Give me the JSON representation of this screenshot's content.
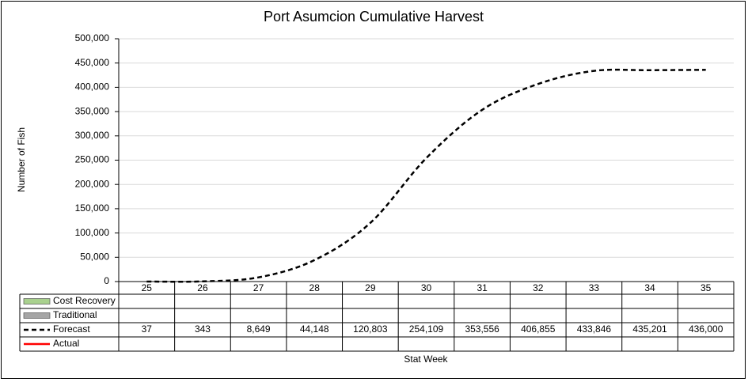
{
  "chart_data": {
    "type": "line",
    "title": "Port Asumcion Cumulative Harvest",
    "x_label": "Stat Week",
    "y_label": "Number of Fish",
    "categories": [
      "25",
      "26",
      "27",
      "28",
      "29",
      "30",
      "31",
      "32",
      "33",
      "34",
      "35"
    ],
    "series": [
      {
        "name": "Cost Recovery",
        "color": "#a9d18e",
        "values": [
          null,
          null,
          null,
          null,
          null,
          null,
          null,
          null,
          null,
          null,
          null
        ]
      },
      {
        "name": "Traditional",
        "color": "#a5a5a5",
        "values": [
          null,
          null,
          null,
          null,
          null,
          null,
          null,
          null,
          null,
          null,
          null
        ]
      },
      {
        "name": "Forecast",
        "color": "#000000",
        "values": [
          37,
          343,
          8649,
          44148,
          120803,
          254109,
          353556,
          406855,
          433846,
          435201,
          436000
        ],
        "value_labels": [
          "37",
          "343",
          "8,649",
          "44,148",
          "120,803",
          "254,109",
          "353,556",
          "406,855",
          "433,846",
          "435,201",
          "436,000"
        ]
      },
      {
        "name": "Actual",
        "color": "#ff0000",
        "values": [
          null,
          null,
          null,
          null,
          null,
          null,
          null,
          null,
          null,
          null,
          null
        ]
      }
    ],
    "ylim": [
      0,
      500000
    ],
    "yticks": [
      0,
      {
        "value": 50000,
        "label": "50,000"
      },
      {
        "value": 100000,
        "label": "100,000"
      },
      {
        "value": 150000,
        "label": "150,000"
      },
      {
        "value": 200000,
        "label": "200,000"
      },
      {
        "value": 250000,
        "label": "250,000"
      },
      {
        "value": 300000,
        "label": "300,000"
      },
      {
        "value": 350000,
        "label": "350,000"
      },
      {
        "value": 400000,
        "label": "400,000"
      },
      {
        "value": 450000,
        "label": "450,000"
      },
      {
        "value": 500000,
        "label": "500,000"
      }
    ],
    "grid": true
  }
}
